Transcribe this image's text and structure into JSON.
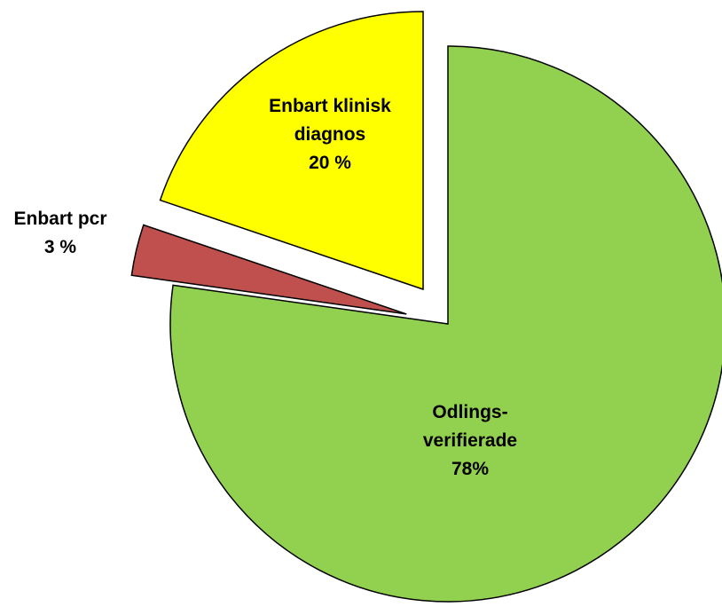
{
  "chart_data": {
    "type": "pie",
    "categories": [
      "Odlings-verifierade",
      "Enbart pcr",
      "Enbart klinisk diagnos"
    ],
    "values": [
      78,
      3,
      20
    ],
    "value_labels": [
      "78%",
      "3 %",
      "20 %"
    ],
    "colors": [
      "#92d050",
      "#c0504d",
      "#ffff00"
    ]
  }
}
